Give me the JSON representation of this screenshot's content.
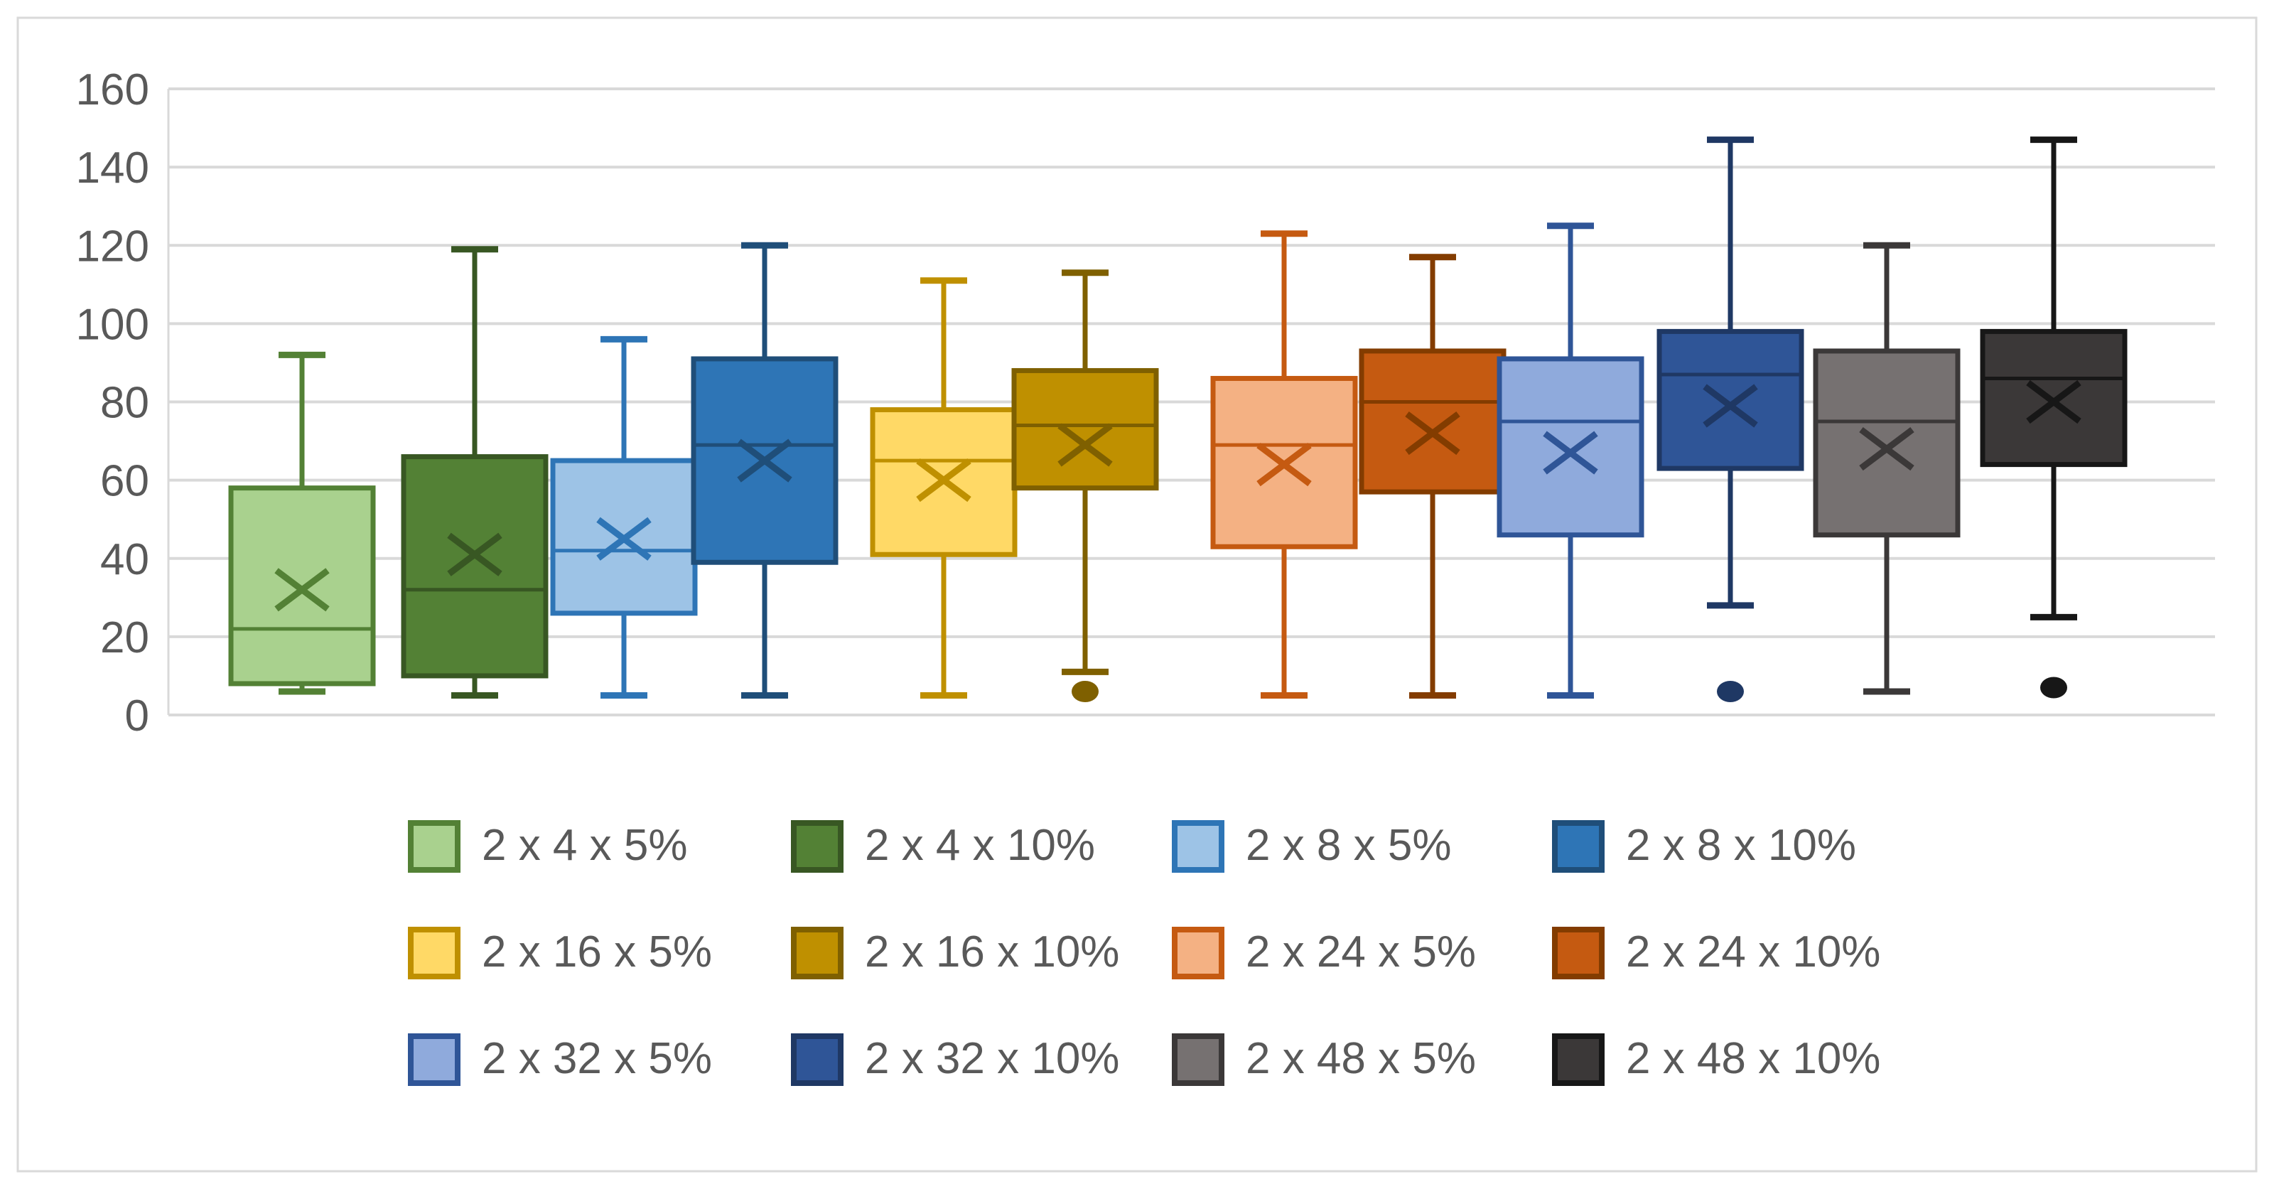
{
  "chart_data": {
    "type": "boxplot",
    "title": "",
    "xlabel": "",
    "ylabel": "",
    "y_axis": {
      "min": 0,
      "max": 160,
      "step": 20,
      "tick_labels": [
        "0",
        "20",
        "40",
        "60",
        "80",
        "100",
        "120",
        "140",
        "160"
      ]
    },
    "grid": true,
    "legend_position": "bottom",
    "legend_rows": 3,
    "legend_cols": 4,
    "mean_marker": "x",
    "series": [
      {
        "label": "2 x 4 x 5%",
        "fill": "#A9D18E",
        "line": "#538135",
        "min": 6,
        "q1": 8,
        "median": 22,
        "mean": 32,
        "q3": 58,
        "max": 92,
        "outliers": []
      },
      {
        "label": "2 x 4 x 10%",
        "fill": "#538135",
        "line": "#385723",
        "min": 5,
        "q1": 10,
        "median": 32,
        "mean": 41,
        "q3": 66,
        "max": 119,
        "outliers": []
      },
      {
        "label": "2 x 8 x 5%",
        "fill": "#9DC3E6",
        "line": "#2E75B6",
        "min": 5,
        "q1": 26,
        "median": 42,
        "mean": 45,
        "q3": 65,
        "max": 96,
        "outliers": []
      },
      {
        "label": "2 x 8 x 10%",
        "fill": "#2E75B6",
        "line": "#1F4E79",
        "min": 5,
        "q1": 39,
        "median": 69,
        "mean": 65,
        "q3": 91,
        "max": 120,
        "outliers": []
      },
      {
        "label": "2 x 16 x 5%",
        "fill": "#FFD966",
        "line": "#BF9000",
        "min": 5,
        "q1": 41,
        "median": 65,
        "mean": 60,
        "q3": 78,
        "max": 111,
        "outliers": []
      },
      {
        "label": "2 x 16 x 10%",
        "fill": "#BF9000",
        "line": "#7F6000",
        "min": 11,
        "q1": 58,
        "median": 74,
        "mean": 69,
        "q3": 88,
        "max": 113,
        "outliers": [
          6
        ]
      },
      {
        "label": "2 x 24 x 5%",
        "fill": "#F4B183",
        "line": "#C55A11",
        "min": 5,
        "q1": 43,
        "median": 69,
        "mean": 64,
        "q3": 86,
        "max": 123,
        "outliers": []
      },
      {
        "label": "2 x 24 x 10%",
        "fill": "#C55A11",
        "line": "#833C00",
        "min": 5,
        "q1": 57,
        "median": 80,
        "mean": 72,
        "q3": 93,
        "max": 117,
        "outliers": []
      },
      {
        "label": "2 x 32 x 5%",
        "fill": "#8FAADC",
        "line": "#2F5597",
        "min": 5,
        "q1": 46,
        "median": 75,
        "mean": 67,
        "q3": 91,
        "max": 125,
        "outliers": []
      },
      {
        "label": "2 x 32 x 10%",
        "fill": "#2F5597",
        "line": "#1F3864",
        "min": 28,
        "q1": 63,
        "median": 87,
        "mean": 79,
        "q3": 98,
        "max": 147,
        "outliers": [
          6
        ]
      },
      {
        "label": "2 x 48 x 5%",
        "fill": "#767171",
        "line": "#3B3838",
        "min": 6,
        "q1": 46,
        "median": 75,
        "mean": 68,
        "q3": 93,
        "max": 120,
        "outliers": []
      },
      {
        "label": "2 x 48 x 10%",
        "fill": "#3B3838",
        "line": "#171717",
        "min": 25,
        "q1": 64,
        "median": 86,
        "mean": 80,
        "q3": 98,
        "max": 147,
        "outliers": [
          7
        ]
      }
    ]
  },
  "colors": {
    "background": "#FFFFFF",
    "gridline": "#D9D9D9",
    "axis_line": "#D9D9D9",
    "chart_border": "#D9D9D9",
    "axis_text": "#595959",
    "legend_text": "#595959"
  }
}
